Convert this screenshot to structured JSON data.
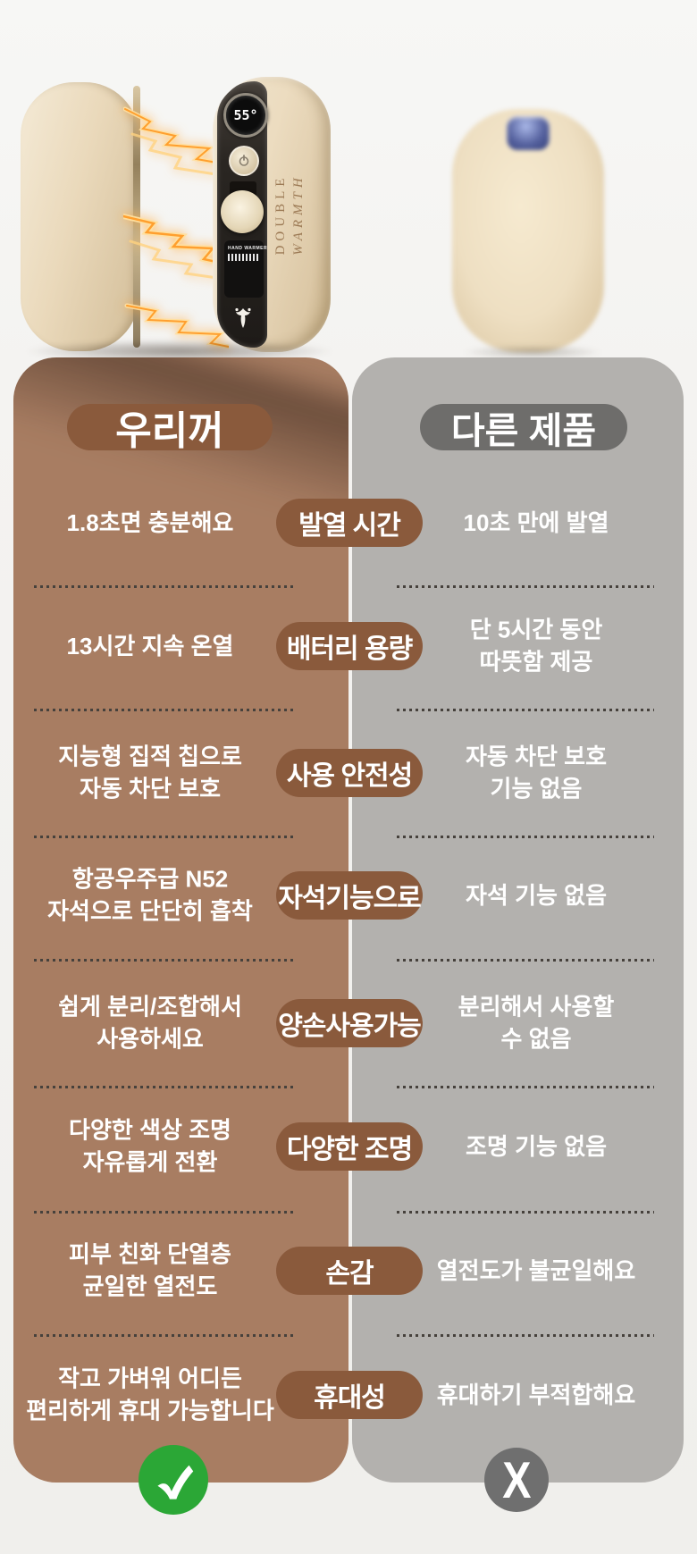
{
  "photo": {
    "ours": {
      "led_value": "55°",
      "brand_line1": "DOUBLE",
      "brand_line2": "WARMTH",
      "module_label": "HAND WARMER"
    }
  },
  "comparison": {
    "ours_header": "우리꺼",
    "other_header": "다른 제품",
    "rows": [
      {
        "ours": "1.8초면 충분해요",
        "category": "발열 시간",
        "other": "10초 만에 발열"
      },
      {
        "ours": "13시간 지속 온열",
        "category": "배터리 용량",
        "other": "단 5시간 동안\n따뜻함 제공"
      },
      {
        "ours": "지능형 집적 칩으로\n자동 차단 보호",
        "category": "사용 안전성",
        "other": "자동 차단 보호\n기능 없음"
      },
      {
        "ours": "항공우주급 N52\n자석으로 단단히 흡착",
        "category": "자석기능으로",
        "other": "자석 기능 없음"
      },
      {
        "ours": "쉽게 분리/조합해서\n사용하세요",
        "category": "양손사용가능",
        "other": "분리해서 사용할\n수 없음"
      },
      {
        "ours": "다양한 색상 조명\n자유롭게 전환",
        "category": "다양한 조명",
        "other": "조명 기능 없음"
      },
      {
        "ours": "피부 친화 단열층\n균일한 열전도",
        "category": "손감",
        "other": "열전도가 불균일해요"
      },
      {
        "ours": "작고 가벼워 어디든\n편리하게 휴대 가능합니다",
        "category": "휴대성",
        "other": "휴대하기 부적합해요"
      }
    ],
    "other_badge_glyph": "X"
  },
  "colors": {
    "panel_ours": "#a87d62",
    "panel_other": "#b3b1ae",
    "pill_brown": "#8a5a3c",
    "pill_gray": "#6e6d6b",
    "badge_green": "#2ba736",
    "badge_gray": "#6f6f6f",
    "lightning": "#ffb950"
  }
}
